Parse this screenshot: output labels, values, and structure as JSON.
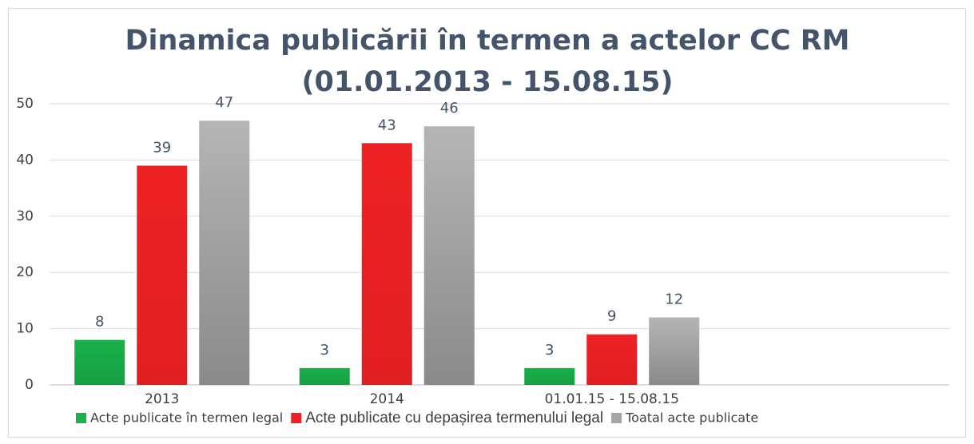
{
  "chart_data": {
    "type": "bar",
    "title": [
      "Dinamica publicării în termen a actelor CC RM",
      "(01.01.2013 - 15.08.15)"
    ],
    "categories": [
      "2013",
      "2014",
      "01.01.15 - 15.08.15",
      null
    ],
    "series": [
      {
        "name": "Acte publicate în termen legal",
        "color": "#1ab04b",
        "values": [
          8,
          3,
          3,
          null
        ]
      },
      {
        "name": "Acte publicate cu depașirea termenului legal",
        "color": "#ee2225",
        "values": [
          39,
          43,
          9,
          null
        ]
      },
      {
        "name": "Toatal acte publicate",
        "color": "#a6a6a6",
        "values": [
          47,
          46,
          12,
          null
        ]
      }
    ],
    "ylim": [
      0,
      50
    ],
    "yticks": [
      0,
      10,
      20,
      30,
      40,
      50
    ],
    "grid": true,
    "legend": "bottom"
  }
}
